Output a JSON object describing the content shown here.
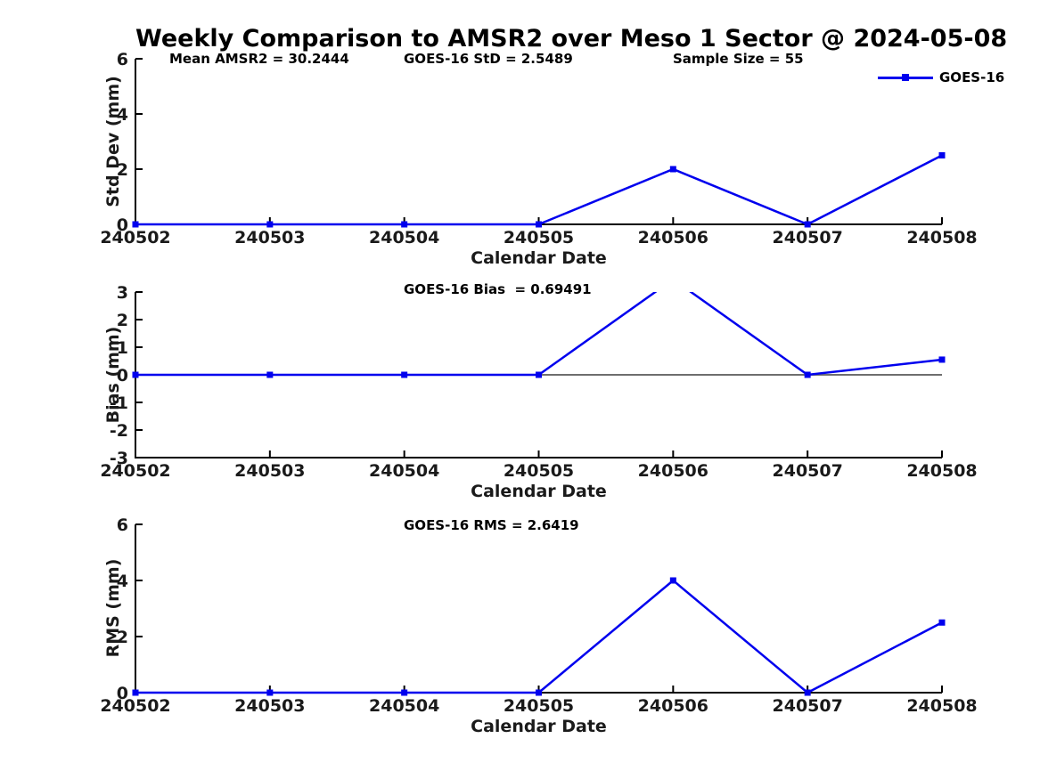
{
  "title": "Weekly Comparison to AMSR2 over Meso 1 Sector @ 2024-05-08",
  "legend": {
    "label": "GOES-16",
    "position": "top-right",
    "marker": "filled-square"
  },
  "colors": {
    "line": "#0000EE",
    "axis": "#000000",
    "tick_text": "#1a1a1a",
    "zero_line": "#6e6e6e"
  },
  "chart_data": [
    {
      "type": "line",
      "ylabel": "Std Dev (mm)",
      "xlabel": "Calendar Date",
      "categories": [
        "240502",
        "240503",
        "240504",
        "240505",
        "240506",
        "240507",
        "240508"
      ],
      "series": [
        {
          "name": "GOES-16",
          "values": [
            0,
            0,
            0,
            0,
            2.0,
            0,
            2.5
          ]
        }
      ],
      "ylim": [
        0,
        6
      ],
      "yticks": [
        0,
        2,
        4,
        6
      ],
      "grid": false,
      "zero_line": false,
      "annotations": [
        {
          "text": "Mean AMSR2 = 30.2444"
        },
        {
          "text": "GOES-16 StD = 2.5489"
        },
        {
          "text": "Sample Size = 55"
        }
      ]
    },
    {
      "type": "line",
      "ylabel": "Bias (mm)",
      "xlabel": "Calendar Date",
      "categories": [
        "240502",
        "240503",
        "240504",
        "240505",
        "240506",
        "240507",
        "240508"
      ],
      "series": [
        {
          "name": "GOES-16",
          "values": [
            0,
            0,
            0,
            0,
            3.46,
            0,
            0.55
          ]
        }
      ],
      "ylim": [
        -3,
        3
      ],
      "yticks": [
        3,
        2,
        1,
        0,
        -1,
        -2,
        -3
      ],
      "grid": false,
      "zero_line": true,
      "annotations": [
        {
          "text": "GOES-16 Bias  = 0.69491"
        }
      ]
    },
    {
      "type": "line",
      "ylabel": "RMS (mm)",
      "xlabel": "Calendar Date",
      "categories": [
        "240502",
        "240503",
        "240504",
        "240505",
        "240506",
        "240507",
        "240508"
      ],
      "series": [
        {
          "name": "GOES-16",
          "values": [
            0,
            0,
            0,
            0,
            4.0,
            0,
            2.5
          ]
        }
      ],
      "ylim": [
        0,
        6
      ],
      "yticks": [
        0,
        2,
        4,
        6
      ],
      "grid": false,
      "zero_line": false,
      "annotations": [
        {
          "text": "GOES-16 RMS = 2.6419"
        }
      ]
    }
  ]
}
